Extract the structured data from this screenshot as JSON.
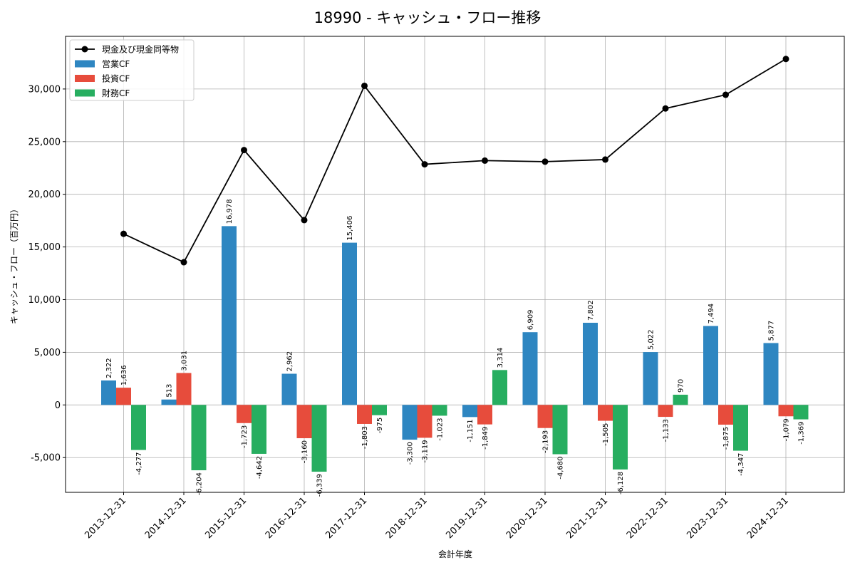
{
  "chart_data": {
    "type": "bar",
    "title": "18990 - キャッシュ・フロー推移",
    "xlabel": "会計年度",
    "ylabel": "キャッシュ・フロー（百万円）",
    "categories": [
      "2013-12-31",
      "2014-12-31",
      "2015-12-31",
      "2016-12-31",
      "2017-12-31",
      "2018-12-31",
      "2019-12-31",
      "2020-12-31",
      "2021-12-31",
      "2022-12-31",
      "2023-12-31",
      "2024-12-31"
    ],
    "ylim": [
      -8300,
      35000
    ],
    "yticks": [
      -5000,
      0,
      5000,
      10000,
      15000,
      20000,
      25000,
      30000
    ],
    "ytick_labels": [
      "-5,000",
      "0",
      "5,000",
      "10,000",
      "15,000",
      "20,000",
      "25,000",
      "30,000"
    ],
    "grid": true,
    "legend_position": "top-left",
    "series": [
      {
        "name": "営業CF",
        "kind": "bar",
        "color": "#2e86c1",
        "values": [
          2322,
          513,
          16978,
          2962,
          15406,
          -3300,
          -1151,
          6909,
          7802,
          5022,
          7494,
          5877
        ],
        "labels": [
          "2,322",
          "513",
          "16,978",
          "2,962",
          "15,406",
          "-3,300",
          "-1,151",
          "6,909",
          "7,802",
          "5,022",
          "7,494",
          "5,877"
        ]
      },
      {
        "name": "投資CF",
        "kind": "bar",
        "color": "#e74c3c",
        "values": [
          1636,
          3031,
          -1723,
          -3160,
          -1803,
          -3119,
          -1849,
          -2193,
          -1505,
          -1133,
          -1875,
          -1079
        ],
        "labels": [
          "1,636",
          "3,031",
          "-1,723",
          "-3,160",
          "-1,803",
          "-3,119",
          "-1,849",
          "-2,193",
          "-1,505",
          "-1,133",
          "-1,875",
          "-1,079"
        ]
      },
      {
        "name": "財務CF",
        "kind": "bar",
        "color": "#27ae60",
        "values": [
          -4277,
          -6204,
          -4642,
          -6339,
          -975,
          -1023,
          3314,
          -4680,
          -6128,
          970,
          -4347,
          -1369
        ],
        "labels": [
          "-4,277",
          "-6,204",
          "-4,642",
          "-6,339",
          "-975",
          "-1,023",
          "3,314",
          "-4,680",
          "-6,128",
          "970",
          "-4,347",
          "-1,369"
        ]
      },
      {
        "name": "現金及び現金同等物",
        "kind": "line",
        "color": "#000000",
        "values": [
          16250,
          13550,
          24200,
          17550,
          30300,
          22850,
          23200,
          23100,
          23300,
          28150,
          29450,
          32850
        ]
      }
    ]
  }
}
